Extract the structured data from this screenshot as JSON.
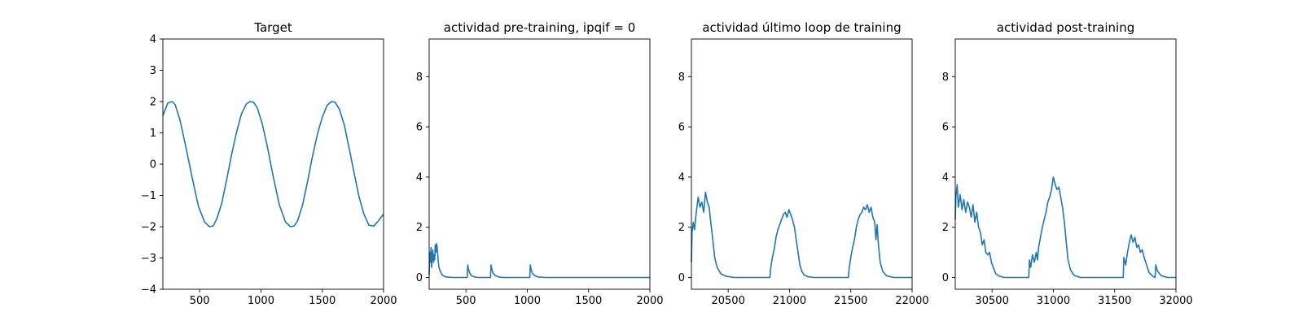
{
  "colors": {
    "line": "#1f77b4",
    "axes": "#000000",
    "background": "#ffffff"
  },
  "chart_data": [
    {
      "type": "line",
      "title": "Target",
      "xlabel": "",
      "ylabel": "",
      "xlim": [
        200,
        2000
      ],
      "ylim": [
        -4,
        4
      ],
      "xticks": [
        500,
        1000,
        1500,
        2000
      ],
      "yticks": [
        -4,
        -3,
        -2,
        -1,
        0,
        1,
        2,
        3,
        4
      ],
      "grid": false,
      "series": [
        {
          "x": [
            200,
            240,
            275,
            300,
            340,
            390,
            440,
            490,
            540,
            580,
            610,
            640,
            680,
            720,
            760,
            800,
            840,
            880,
            910,
            940,
            970,
            1010,
            1050,
            1100,
            1150,
            1200,
            1240,
            1270,
            1300,
            1340,
            1380,
            1420,
            1460,
            1500,
            1540,
            1575,
            1605,
            1640,
            1680,
            1720,
            1760,
            1800,
            1840,
            1880,
            1920,
            1950,
            1980,
            2000
          ],
          "y": [
            1.55,
            1.95,
            2.0,
            1.9,
            1.4,
            0.5,
            -0.45,
            -1.35,
            -1.85,
            -2.0,
            -1.98,
            -1.75,
            -1.25,
            -0.5,
            0.3,
            1.0,
            1.6,
            1.92,
            2.0,
            1.98,
            1.8,
            1.3,
            0.6,
            -0.4,
            -1.3,
            -1.85,
            -2.0,
            -1.98,
            -1.8,
            -1.3,
            -0.55,
            0.25,
            0.95,
            1.5,
            1.88,
            2.0,
            1.98,
            1.75,
            1.25,
            0.5,
            -0.3,
            -1.05,
            -1.6,
            -1.95,
            -1.98,
            -1.85,
            -1.7,
            -1.6
          ]
        }
      ]
    },
    {
      "type": "line",
      "title": "actividad pre-training, ipqif = 0",
      "xlabel": "",
      "ylabel": "",
      "xlim": [
        200,
        2000
      ],
      "ylim": [
        -0.47,
        9.5
      ],
      "xticks": [
        500,
        1000,
        1500,
        2000
      ],
      "yticks": [
        0,
        2,
        4,
        6,
        8
      ],
      "grid": false,
      "series": [
        {
          "x": [
            200,
            205,
            210,
            215,
            220,
            225,
            230,
            235,
            240,
            245,
            250,
            255,
            260,
            265,
            270,
            275,
            280,
            290,
            300,
            310,
            330,
            360,
            400,
            450,
            510,
            515,
            520,
            530,
            545,
            570,
            600,
            700,
            705,
            710,
            720,
            740,
            770,
            800,
            1020,
            1025,
            1030,
            1040,
            1060,
            1090,
            1150,
            1500,
            2000
          ],
          "y": [
            0.1,
            1.0,
            0.6,
            1.2,
            0.4,
            0.9,
            1.1,
            0.6,
            0.9,
            0.7,
            1.3,
            1.0,
            1.35,
            1.2,
            0.9,
            0.6,
            0.4,
            0.25,
            0.15,
            0.08,
            0.03,
            0.01,
            0.0,
            0.0,
            0.0,
            0.5,
            0.35,
            0.18,
            0.07,
            0.02,
            0.0,
            0.0,
            0.5,
            0.35,
            0.18,
            0.07,
            0.02,
            0.0,
            0.0,
            0.5,
            0.35,
            0.18,
            0.07,
            0.02,
            0.0,
            0.0,
            0.0
          ]
        }
      ]
    },
    {
      "type": "line",
      "title": "actividad último loop de training",
      "xlabel": "",
      "ylabel": "",
      "xlim": [
        20200,
        22000
      ],
      "ylim": [
        -0.47,
        9.5
      ],
      "xticks": [
        20500,
        21000,
        21500,
        22000
      ],
      "yticks": [
        0,
        2,
        4,
        6,
        8
      ],
      "grid": false,
      "series": [
        {
          "x": [
            20200,
            20205,
            20215,
            20225,
            20240,
            20255,
            20270,
            20285,
            20300,
            20315,
            20330,
            20345,
            20360,
            20375,
            20390,
            20410,
            20440,
            20480,
            20550,
            20700,
            20840,
            20845,
            20860,
            20875,
            20890,
            20905,
            20920,
            20935,
            20950,
            20965,
            20980,
            20995,
            21010,
            21025,
            21040,
            21055,
            21070,
            21085,
            21100,
            21120,
            21150,
            21200,
            21300,
            21480,
            21485,
            21500,
            21515,
            21530,
            21545,
            21560,
            21575,
            21590,
            21605,
            21620,
            21635,
            21650,
            21665,
            21680,
            21695,
            21705,
            21715,
            21725,
            21740,
            21760,
            21790,
            21850,
            22000
          ],
          "y": [
            0.6,
            1.8,
            2.2,
            1.9,
            2.6,
            3.2,
            2.8,
            3.0,
            2.6,
            3.4,
            3.0,
            2.8,
            2.1,
            1.5,
            0.8,
            0.4,
            0.15,
            0.05,
            0.0,
            0.0,
            0.0,
            0.3,
            0.8,
            1.1,
            1.6,
            1.9,
            2.1,
            2.3,
            2.5,
            2.6,
            2.4,
            2.7,
            2.5,
            2.3,
            2.0,
            1.5,
            1.0,
            0.5,
            0.25,
            0.1,
            0.03,
            0.0,
            0.0,
            0.0,
            0.3,
            0.8,
            1.2,
            1.5,
            2.0,
            2.3,
            2.5,
            2.6,
            2.8,
            2.7,
            2.9,
            2.6,
            2.8,
            2.4,
            2.2,
            1.5,
            2.1,
            1.3,
            0.6,
            0.25,
            0.07,
            0.0,
            0.0
          ]
        }
      ]
    },
    {
      "type": "line",
      "title": "actividad post-training",
      "xlabel": "",
      "ylabel": "",
      "xlim": [
        30200,
        32000
      ],
      "ylim": [
        -0.47,
        9.5
      ],
      "xticks": [
        30500,
        31000,
        31500,
        32000
      ],
      "yticks": [
        0,
        2,
        4,
        6,
        8
      ],
      "grid": false,
      "series": [
        {
          "x": [
            30200,
            30205,
            30215,
            30225,
            30240,
            30255,
            30270,
            30285,
            30300,
            30315,
            30330,
            30345,
            30360,
            30375,
            30390,
            30405,
            30420,
            30435,
            30450,
            30465,
            30480,
            30495,
            30510,
            30530,
            30560,
            30600,
            30700,
            30800,
            30805,
            30815,
            30830,
            30845,
            30860,
            30870,
            30880,
            30895,
            30910,
            30925,
            30940,
            30955,
            30970,
            30985,
            31000,
            31015,
            31030,
            31045,
            31060,
            31075,
            31090,
            31105,
            31120,
            31140,
            31170,
            31220,
            31300,
            31570,
            31575,
            31590,
            31605,
            31620,
            31635,
            31650,
            31665,
            31680,
            31695,
            31710,
            31725,
            31740,
            31760,
            31780,
            31810,
            31830,
            31835,
            31850,
            31880,
            31930,
            32000
          ],
          "y": [
            2.3,
            3.2,
            3.7,
            2.8,
            3.3,
            2.7,
            3.1,
            2.6,
            3.0,
            2.8,
            2.4,
            2.9,
            2.2,
            2.6,
            2.0,
            1.8,
            1.3,
            1.5,
            1.0,
            0.9,
            1.0,
            0.6,
            0.4,
            0.15,
            0.05,
            0.0,
            0.0,
            0.0,
            0.7,
            0.4,
            0.9,
            0.6,
            1.0,
            0.7,
            1.2,
            1.6,
            2.0,
            2.3,
            2.6,
            3.0,
            3.2,
            3.5,
            4.0,
            3.7,
            3.5,
            3.6,
            3.2,
            2.8,
            2.2,
            1.4,
            0.7,
            0.3,
            0.08,
            0.0,
            0.0,
            0.0,
            0.8,
            0.5,
            1.0,
            1.4,
            1.7,
            1.4,
            1.6,
            1.2,
            1.3,
            1.0,
            1.1,
            0.8,
            0.5,
            0.2,
            0.05,
            0.0,
            0.5,
            0.25,
            0.07,
            0.0,
            0.0
          ]
        }
      ]
    }
  ]
}
